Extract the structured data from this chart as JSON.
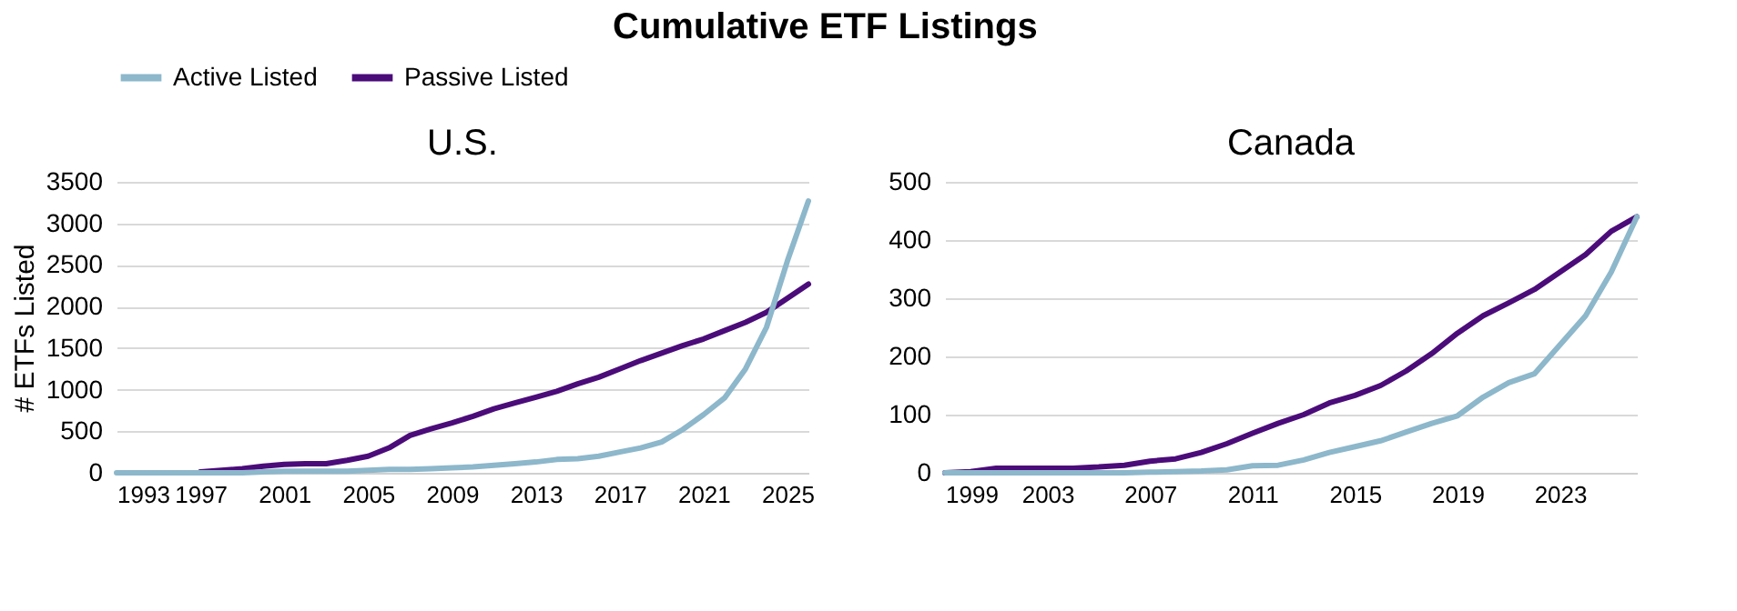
{
  "chart_data": [
    {
      "type": "line",
      "title": "Cumulative ETF Listings",
      "subtitle": "U.S.",
      "ylabel": "# ETFs  Listed",
      "x": [
        1993,
        1994,
        1995,
        1996,
        1997,
        1998,
        1999,
        2000,
        2001,
        2002,
        2003,
        2004,
        2005,
        2006,
        2007,
        2008,
        2009,
        2010,
        2011,
        2012,
        2013,
        2014,
        2015,
        2016,
        2017,
        2018,
        2019,
        2020,
        2021,
        2022,
        2023,
        2024,
        2025,
        2026
      ],
      "series": [
        {
          "name": "Active Listed",
          "color": "#8db7cb",
          "values": [
            0,
            0,
            0,
            0,
            0,
            0,
            0,
            10,
            20,
            20,
            20,
            20,
            30,
            40,
            40,
            50,
            60,
            70,
            90,
            110,
            130,
            160,
            170,
            200,
            250,
            300,
            370,
            520,
            700,
            900,
            1250,
            1750,
            2550,
            3270
          ]
        },
        {
          "name": "Passive Listed",
          "color": "#4b0c7a",
          "values": [
            null,
            null,
            null,
            null,
            10,
            30,
            50,
            80,
            100,
            110,
            110,
            150,
            200,
            300,
            450,
            530,
            600,
            680,
            770,
            840,
            910,
            980,
            1070,
            1150,
            1250,
            1350,
            1440,
            1530,
            1610,
            1710,
            1810,
            1930,
            2100,
            2270
          ]
        }
      ],
      "xlim": [
        1993,
        2026
      ],
      "xticks": [
        1993,
        1997,
        2001,
        2005,
        2009,
        2013,
        2017,
        2021,
        2025
      ],
      "ylim": [
        0,
        3500
      ],
      "yticks": [
        0,
        500,
        1000,
        1500,
        2000,
        2500,
        3000,
        3500
      ],
      "grid": "y",
      "legend": "top"
    },
    {
      "type": "line",
      "subtitle": "Canada",
      "x": [
        1999,
        2000,
        2001,
        2002,
        2003,
        2004,
        2005,
        2006,
        2007,
        2008,
        2009,
        2010,
        2011,
        2012,
        2013,
        2014,
        2015,
        2016,
        2017,
        2018,
        2019,
        2020,
        2021,
        2022,
        2023,
        2024,
        2025,
        2026
      ],
      "series": [
        {
          "name": "Active Listed",
          "color": "#8db7cb",
          "values": [
            0,
            0,
            0,
            0,
            0,
            0,
            0,
            0,
            1,
            2,
            3,
            5,
            12,
            13,
            22,
            35,
            45,
            55,
            70,
            85,
            98,
            130,
            155,
            170,
            220,
            270,
            345,
            440
          ]
        },
        {
          "name": "Passive Listed",
          "color": "#4b0c7a",
          "values": [
            0,
            2,
            8,
            8,
            8,
            8,
            10,
            13,
            20,
            24,
            35,
            50,
            68,
            85,
            100,
            120,
            133,
            150,
            175,
            205,
            240,
            270,
            292,
            315,
            345,
            375,
            415,
            440
          ]
        }
      ],
      "xlim": [
        1999,
        2026
      ],
      "xticks": [
        1999,
        2003,
        2007,
        2011,
        2015,
        2019,
        2023
      ],
      "ylim": [
        0,
        500
      ],
      "yticks": [
        0,
        100,
        200,
        300,
        400,
        500
      ],
      "grid": "y",
      "legend": "top"
    }
  ]
}
